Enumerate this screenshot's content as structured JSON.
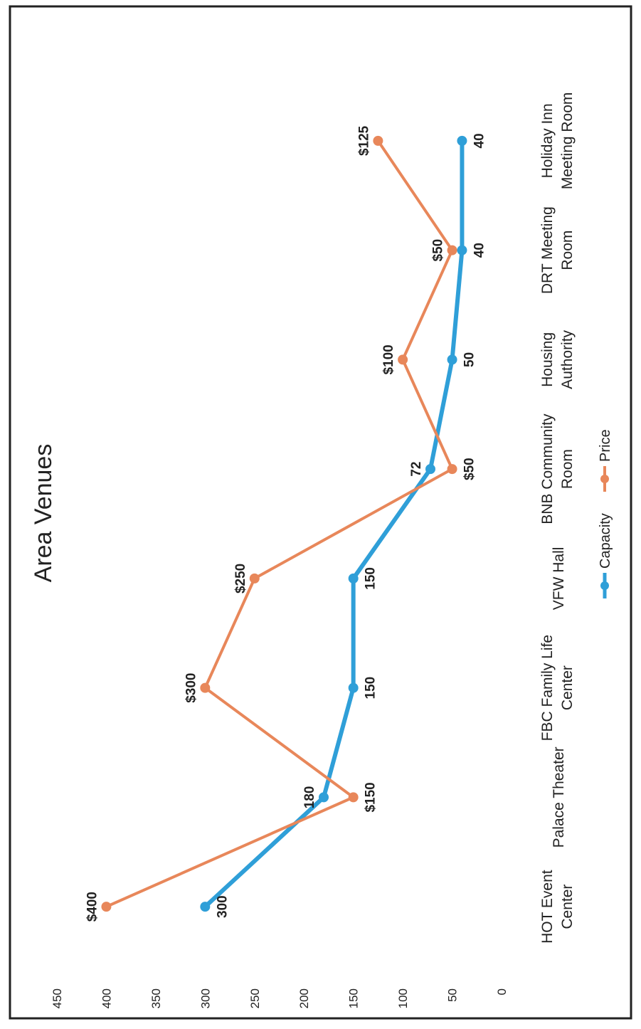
{
  "chart_data": {
    "type": "line",
    "title": "Area Venues",
    "categories": [
      [
        "HOT Event",
        "Center"
      ],
      [
        "Palace Theater"
      ],
      [
        "FBC Family Life",
        "Center"
      ],
      [
        "VFW Hall"
      ],
      [
        "BNB Community",
        "Room"
      ],
      [
        "Housing",
        "Authority"
      ],
      [
        "DRT Meeting",
        "Room"
      ],
      [
        "Holiday Inn",
        "Meeting Room"
      ]
    ],
    "series": [
      {
        "name": "Capacity",
        "color": "#2f9fd8",
        "values": [
          300,
          180,
          150,
          150,
          72,
          50,
          40,
          40
        ],
        "labels": [
          "300",
          "180",
          "150",
          "150",
          "72",
          "50",
          "40",
          "40"
        ]
      },
      {
        "name": "Price",
        "color": "#e8875a",
        "values": [
          400,
          150,
          300,
          250,
          50,
          100,
          50,
          125
        ],
        "labels": [
          "$400",
          "$150",
          "$300",
          "$250",
          "$50",
          "$100",
          "$50",
          "$125"
        ]
      }
    ],
    "yticks": [
      0,
      50,
      100,
      150,
      200,
      250,
      300,
      350,
      400,
      450
    ],
    "ylim": [
      0,
      450
    ],
    "grid": false,
    "legend": "bottom"
  }
}
